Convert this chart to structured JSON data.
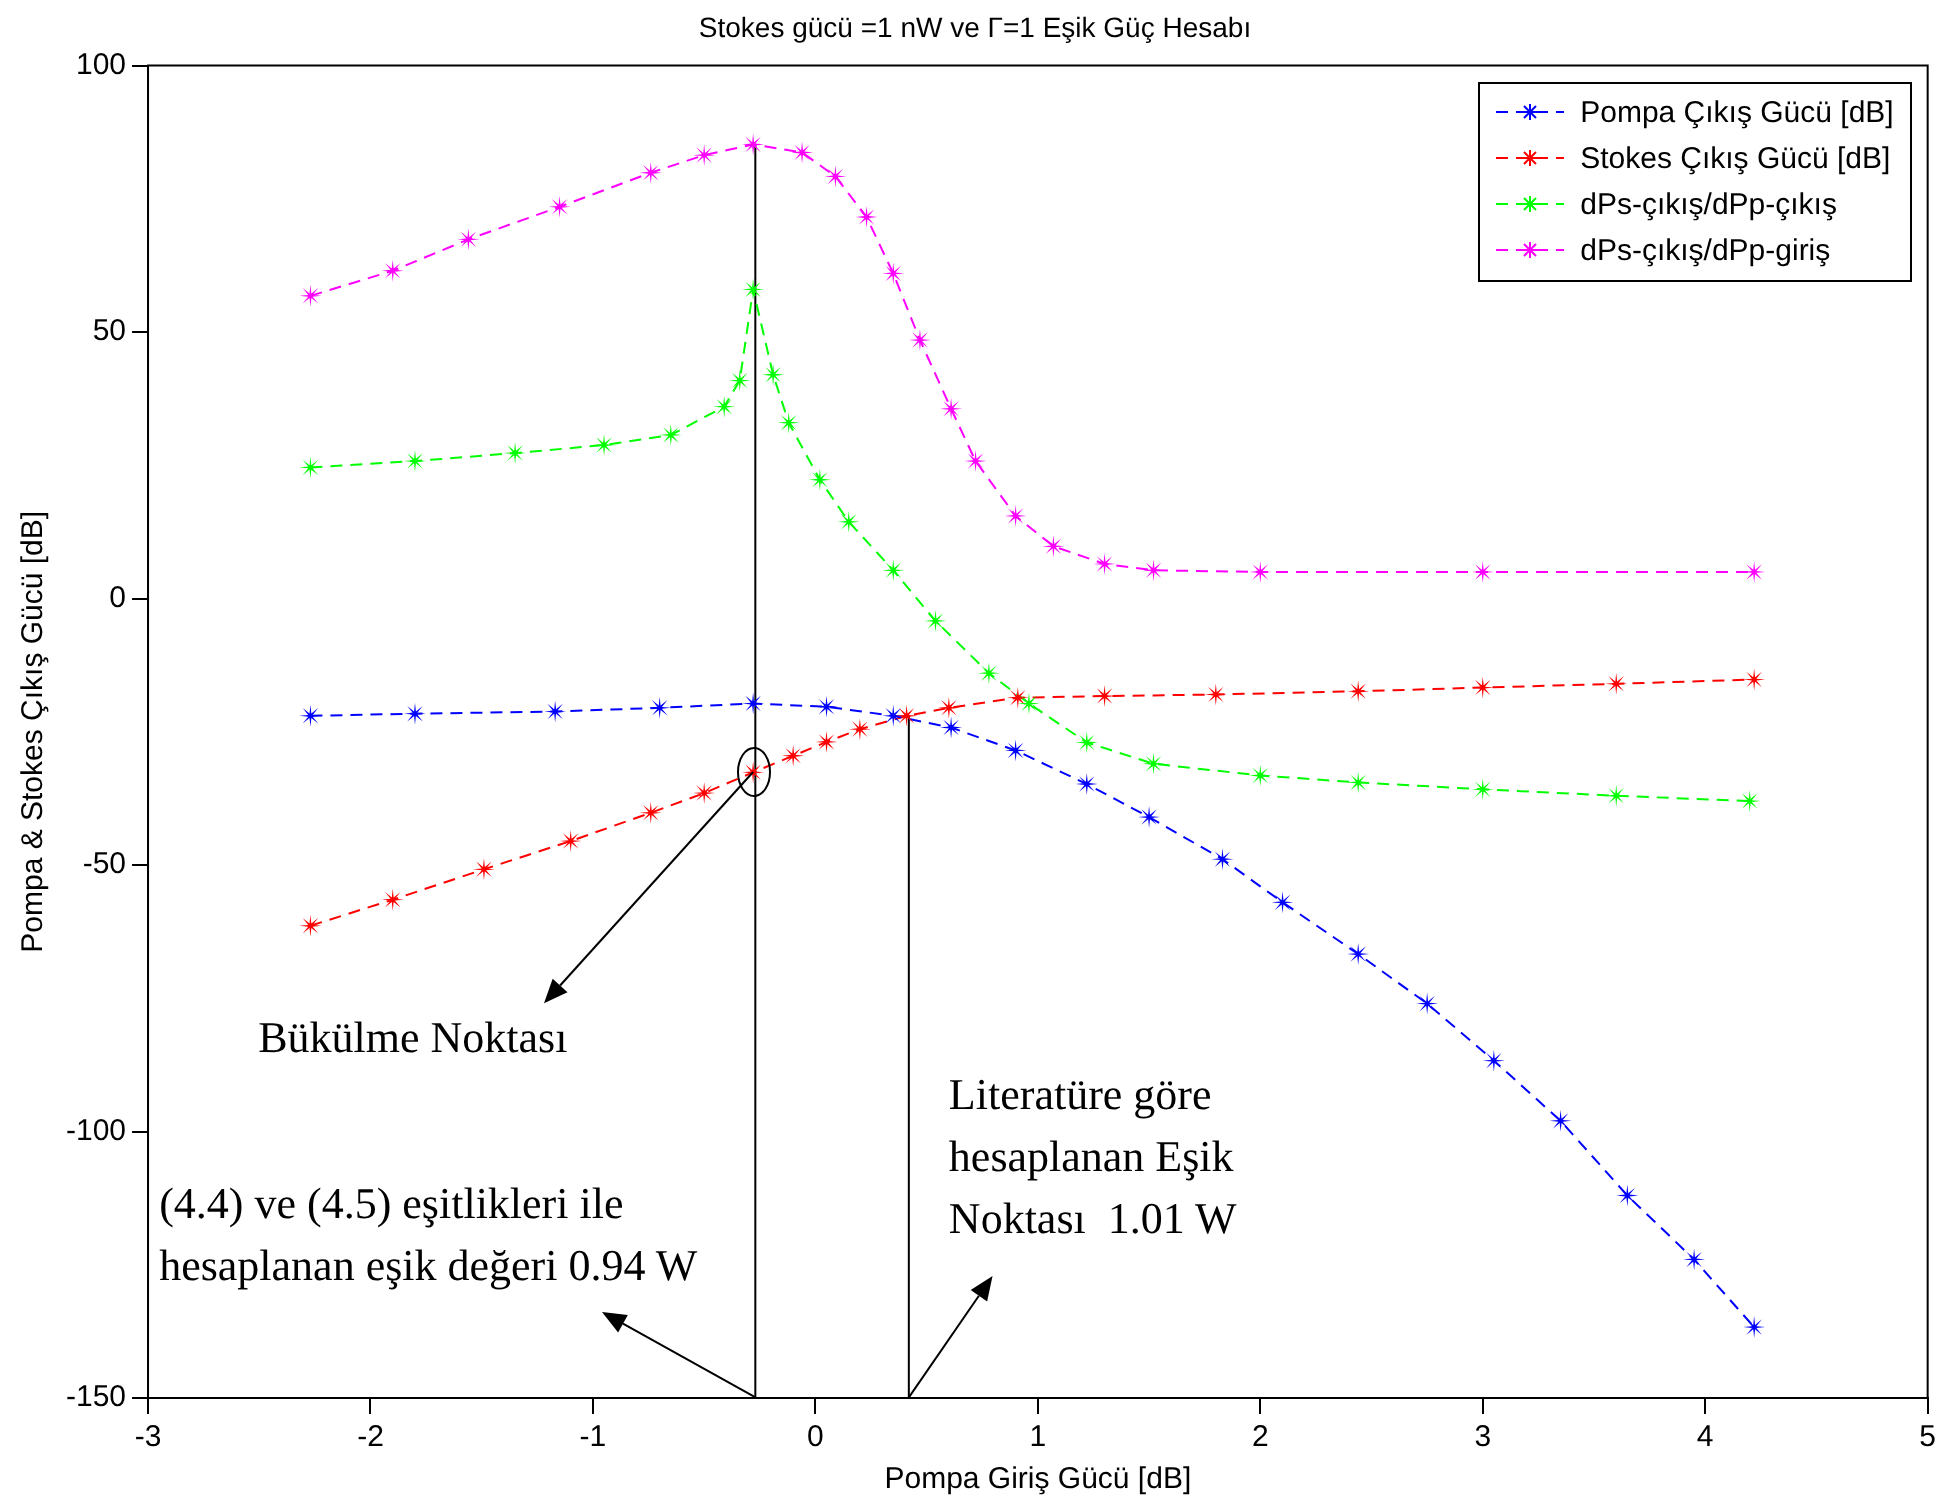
{
  "chart_data": {
    "type": "line",
    "title": "Stokes gücü =1 nW ve Γ=1 Eşik Güç Hesabı",
    "xlabel": "Pompa Giriş Gücü [dB]",
    "ylabel": "Pompa & Stokes Çıkış Gücü [dB]",
    "xlim": [
      -3,
      5
    ],
    "xticks": [
      -3,
      -2,
      -1,
      0,
      1,
      2,
      3,
      4,
      5
    ],
    "ylim": [
      -150,
      100
    ],
    "yticks": [
      -150,
      -100,
      -50,
      0,
      50,
      100
    ],
    "grid": false,
    "legend": "top right",
    "marker": "star",
    "line_style": "dashed",
    "series": [
      {
        "name": "Pompa Çıkış Gücü [dB]",
        "color": "#0000ff",
        "x": [
          -2.27,
          -1.8,
          -1.17,
          -0.7,
          -0.28,
          0.05,
          0.35,
          0.61,
          0.9,
          1.22,
          1.5,
          1.83,
          2.1,
          2.44,
          2.75,
          3.05,
          3.35,
          3.65,
          3.95,
          4.22
        ],
        "values": [
          -22,
          -21.6,
          -21.2,
          -20.5,
          -19.7,
          -20.3,
          -22,
          -24.2,
          -28.5,
          -34.8,
          -41,
          -48.9,
          -57,
          -66.7,
          -76,
          -86.7,
          -98,
          -112,
          -124,
          -136.7
        ]
      },
      {
        "name": "Stokes Çıkış Gücü [dB]",
        "color": "#ff0000",
        "x": [
          -2.27,
          -1.9,
          -1.49,
          -1.1,
          -0.74,
          -0.5,
          -0.28,
          -0.1,
          0.05,
          0.2,
          0.41,
          0.6,
          0.91,
          1.3,
          1.8,
          2.44,
          3.0,
          3.6,
          4.22
        ],
        "values": [
          -61.4,
          -56.5,
          -50.8,
          -45.5,
          -40.2,
          -36.5,
          -32.6,
          -29.5,
          -26.9,
          -24.5,
          -22,
          -20.5,
          -18.6,
          -18.3,
          -18,
          -17.4,
          -16.7,
          -16,
          -15.2
        ]
      },
      {
        "name": "dPs-çıkış/dPp-çıkış",
        "color": "#00ff00",
        "x": [
          -2.27,
          -1.8,
          -1.35,
          -0.95,
          -0.65,
          -0.41,
          -0.34,
          -0.28,
          -0.19,
          -0.12,
          0.02,
          0.15,
          0.35,
          0.54,
          0.78,
          0.96,
          1.22,
          1.52,
          2.0,
          2.44,
          3.0,
          3.6,
          4.2
        ],
        "values": [
          24.6,
          25.8,
          27.3,
          28.8,
          30.7,
          36,
          40.9,
          58,
          42,
          33,
          22.3,
          14.4,
          5.3,
          -4.2,
          -14,
          -19.7,
          -27,
          -31,
          -33.2,
          -34.5,
          -35.8,
          -37,
          -38
        ]
      },
      {
        "name": "dPs-çıkış/dPp-giriş",
        "color": "#ff00ff",
        "x": [
          -2.27,
          -1.9,
          -1.56,
          -1.15,
          -0.74,
          -0.5,
          -0.28,
          -0.06,
          0.09,
          0.23,
          0.35,
          0.47,
          0.61,
          0.72,
          0.9,
          1.07,
          1.3,
          1.52,
          2.0,
          3.0,
          4.22
        ],
        "values": [
          56.8,
          61.5,
          67.4,
          73.5,
          79.9,
          83.2,
          85.2,
          83.7,
          79.2,
          71.6,
          61,
          48.5,
          35.6,
          25.8,
          15.5,
          9.8,
          6.5,
          5.3,
          5,
          5,
          5
        ]
      },
      {
        "type": "line",
        "color": "#000000",
        "marker": "none",
        "line_style": "solid",
        "x": [
          -0.27,
          -0.27
        ],
        "values": [
          -150,
          85.2
        ]
      },
      {
        "type": "line",
        "color": "#000000",
        "marker": "none",
        "line_style": "solid",
        "x": [
          0.42,
          0.42
        ],
        "values": [
          -150,
          -22
        ]
      }
    ],
    "annotations": [
      {
        "text": "Bükülme Noktası",
        "x": -0.28,
        "y": -32.6
      },
      {
        "text": "(4.4) ve (4.5) eşitlikleri ile\nhesaplanan eşik değeri 0.94 W",
        "x": -0.27,
        "y": -150
      },
      {
        "text": "Literatüre göre\nhesaplanan Eşik\nNoktası  1.01 W",
        "x": 0.42,
        "y": -150
      }
    ]
  }
}
